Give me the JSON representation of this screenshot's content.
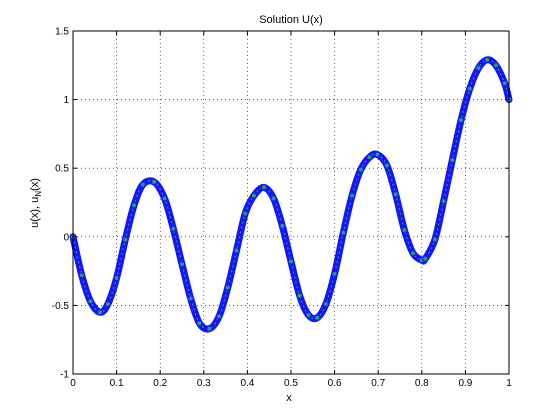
{
  "chart_data": {
    "type": "line",
    "title": "Solution U(x)",
    "xlabel": "x",
    "ylabel_parts": [
      "u(x), u",
      "N",
      "(x)"
    ],
    "xlim": [
      0,
      1
    ],
    "ylim": [
      -1,
      1.5
    ],
    "x_ticks": [
      "0",
      "0.1",
      "0.2",
      "0.3",
      "0.4",
      "0.5",
      "0.6",
      "0.7",
      "0.8",
      "0.9",
      "1"
    ],
    "x_tick_values": [
      0,
      0.1,
      0.2,
      0.3,
      0.4,
      0.5,
      0.6,
      0.7,
      0.8,
      0.9,
      1
    ],
    "y_ticks": [
      "-1",
      "-0.5",
      "0",
      "0.5",
      "1",
      "1.5"
    ],
    "y_tick_values": [
      -1,
      -0.5,
      0,
      0.5,
      1,
      1.5
    ],
    "grid": true,
    "series": [
      {
        "color": "#1414ff",
        "marker_color": "#20a070",
        "x": [
          0,
          0.02,
          0.04,
          0.062,
          0.08,
          0.1,
          0.12,
          0.14,
          0.16,
          0.186,
          0.21,
          0.23,
          0.25,
          0.27,
          0.29,
          0.313,
          0.335,
          0.355,
          0.375,
          0.395,
          0.415,
          0.438,
          0.46,
          0.48,
          0.5,
          0.52,
          0.54,
          0.56,
          0.58,
          0.6,
          0.62,
          0.64,
          0.66,
          0.68,
          0.698,
          0.72,
          0.74,
          0.76,
          0.78,
          0.8,
          0.808,
          0.83,
          0.85,
          0.87,
          0.89,
          0.91,
          0.93,
          0.95,
          0.97,
          0.99,
          1.0
        ],
        "y": [
          0,
          -0.28,
          -0.47,
          -0.55,
          -0.49,
          -0.3,
          -0.02,
          0.23,
          0.38,
          0.4,
          0.28,
          0.06,
          -0.2,
          -0.45,
          -0.63,
          -0.67,
          -0.58,
          -0.37,
          -0.1,
          0.17,
          0.3,
          0.36,
          0.28,
          0.08,
          -0.18,
          -0.43,
          -0.57,
          -0.59,
          -0.49,
          -0.27,
          0.03,
          0.3,
          0.49,
          0.58,
          0.6,
          0.52,
          0.31,
          0.05,
          -0.12,
          -0.17,
          -0.16,
          -0.02,
          0.26,
          0.56,
          0.85,
          1.08,
          1.23,
          1.29,
          1.25,
          1.12,
          1.0
        ]
      }
    ]
  }
}
